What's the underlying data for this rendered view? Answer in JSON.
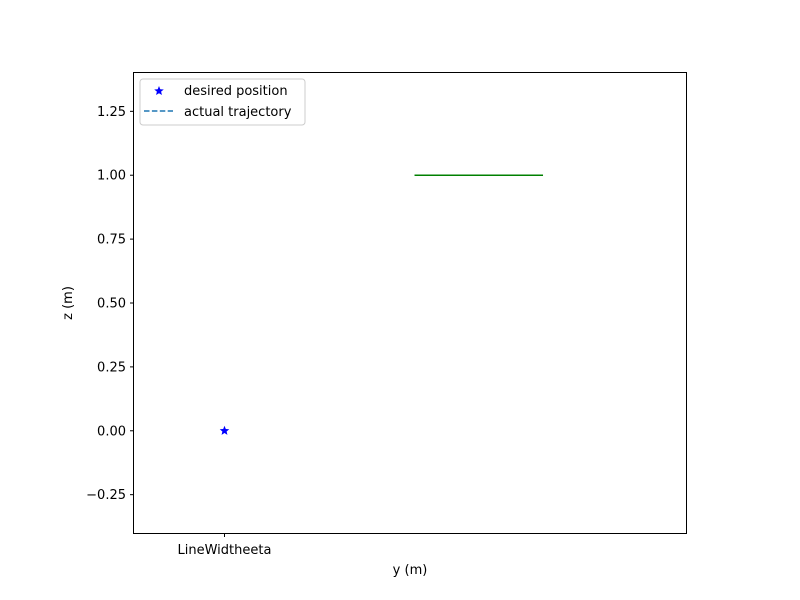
{
  "chart_data": {
    "type": "line",
    "title": "",
    "xlabel": "y (m)",
    "ylabel": "z (m)",
    "x_tick_labels": [
      "LineWidtheeta"
    ],
    "y_ticks": [
      -0.25,
      0.0,
      0.25,
      0.5,
      0.75,
      1.0,
      1.25
    ],
    "y_tick_labels": [
      "−0.25",
      "0.00",
      "0.25",
      "0.50",
      "0.75",
      "1.00",
      "1.25"
    ],
    "xlim": [
      -0.5,
      2.55
    ],
    "ylim": [
      -0.4,
      1.4
    ],
    "grid": false,
    "legend_position": "top-left",
    "series": [
      {
        "name": "desired position",
        "kind": "scatter",
        "marker": "star",
        "color": "#0000ff",
        "points": [
          {
            "x": 0,
            "y": 0
          }
        ]
      },
      {
        "name": "actual trajectory",
        "kind": "line",
        "style": "dashed",
        "color": "#1f77b4",
        "points": []
      },
      {
        "kind": "line",
        "style": "solid",
        "color": "#008000",
        "points": [
          {
            "x": 1.05,
            "y": 1.0
          },
          {
            "x": 1.76,
            "y": 1.0
          }
        ]
      }
    ]
  }
}
